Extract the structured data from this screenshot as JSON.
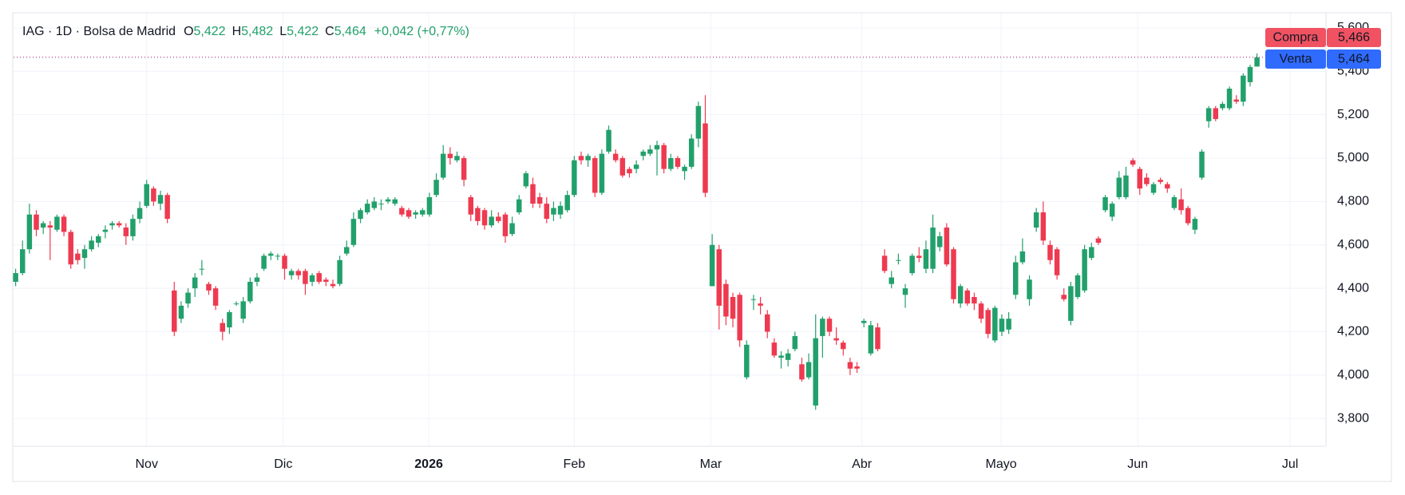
{
  "chart_data": {
    "type": "candlestick",
    "title": "IAG · 1D · Bolsa de Madrid",
    "ohlc_labels": [
      {
        "label": "O",
        "value": "5,422"
      },
      {
        "label": "H",
        "value": "5,482"
      },
      {
        "label": "L",
        "value": "5,422"
      },
      {
        "label": "C",
        "value": "5,464"
      }
    ],
    "change": "+0,042 (+0,77%)",
    "up_color": "#22a06b",
    "down_color": "#ee3a50",
    "grid": true,
    "xlim": [
      -0.3,
      190
    ],
    "xticks": [
      {
        "value": 19,
        "label": "Nov"
      },
      {
        "value": 38.8,
        "label": "Dic"
      },
      {
        "value": 59.9,
        "label": "2026"
      },
      {
        "value": 81,
        "label": "Feb"
      },
      {
        "value": 100.8,
        "label": "Mar"
      },
      {
        "value": 122.7,
        "label": "Abr"
      },
      {
        "value": 142.9,
        "label": "Mayo"
      },
      {
        "value": 162.7,
        "label": "Jun"
      },
      {
        "value": 184.8,
        "label": "Jul"
      }
    ],
    "ylim": [
      3.672,
      5.666
    ],
    "yticks": [
      {
        "value": 3.8,
        "label": "3,800"
      },
      {
        "value": 4.0,
        "label": "4,000"
      },
      {
        "value": 4.2,
        "label": "4,200"
      },
      {
        "value": 4.4,
        "label": "4,400"
      },
      {
        "value": 4.6,
        "label": "4,600"
      },
      {
        "value": 4.8,
        "label": "4,800"
      },
      {
        "value": 5.0,
        "label": "5,000"
      },
      {
        "value": 5.2,
        "label": "5,200"
      },
      {
        "value": 5.4,
        "label": "5,400"
      },
      {
        "value": 5.6,
        "label": "5,600"
      }
    ],
    "price_lines": [
      {
        "name": "Compra",
        "value": 5.466,
        "label": "5,466",
        "color": "#f05262"
      },
      {
        "name": "Venta",
        "value": 5.464,
        "label": "5,464",
        "color": "#2f6bff"
      }
    ],
    "ohlc": [
      [
        4.43,
        4.49,
        4.41,
        4.47
      ],
      [
        4.47,
        4.62,
        4.46,
        4.58
      ],
      [
        4.58,
        4.79,
        4.56,
        4.74
      ],
      [
        4.74,
        4.76,
        4.64,
        4.67
      ],
      [
        4.68,
        4.71,
        4.65,
        4.7
      ],
      [
        4.69,
        4.71,
        4.53,
        4.68
      ],
      [
        4.67,
        4.74,
        4.66,
        4.73
      ],
      [
        4.73,
        4.74,
        4.64,
        4.66
      ],
      [
        4.66,
        4.67,
        4.49,
        4.51
      ],
      [
        4.56,
        4.58,
        4.51,
        4.53
      ],
      [
        4.54,
        4.6,
        4.49,
        4.58
      ],
      [
        4.58,
        4.64,
        4.57,
        4.62
      ],
      [
        4.61,
        4.65,
        4.59,
        4.64
      ],
      [
        4.66,
        4.69,
        4.63,
        4.67
      ],
      [
        4.69,
        4.71,
        4.67,
        4.7
      ],
      [
        4.7,
        4.71,
        4.68,
        4.69
      ],
      [
        4.68,
        4.7,
        4.6,
        4.64
      ],
      [
        4.64,
        4.74,
        4.62,
        4.72
      ],
      [
        4.72,
        4.8,
        4.7,
        4.77
      ],
      [
        4.78,
        4.9,
        4.77,
        4.88
      ],
      [
        4.86,
        4.87,
        4.78,
        4.8
      ],
      [
        4.79,
        4.85,
        4.76,
        4.83
      ],
      [
        4.83,
        4.84,
        4.7,
        4.72
      ],
      [
        4.39,
        4.43,
        4.18,
        4.2
      ],
      [
        4.26,
        4.34,
        4.24,
        4.32
      ],
      [
        4.33,
        4.4,
        4.31,
        4.38
      ],
      [
        4.4,
        4.47,
        4.36,
        4.45
      ],
      [
        4.49,
        4.53,
        4.46,
        4.49
      ],
      [
        4.42,
        4.43,
        4.37,
        4.39
      ],
      [
        4.4,
        4.41,
        4.3,
        4.32
      ],
      [
        4.24,
        4.26,
        4.16,
        4.2
      ],
      [
        4.22,
        4.3,
        4.19,
        4.29
      ],
      [
        4.33,
        4.34,
        4.32,
        4.33
      ],
      [
        4.26,
        4.36,
        4.24,
        4.34
      ],
      [
        4.34,
        4.45,
        4.33,
        4.43
      ],
      [
        4.43,
        4.47,
        4.41,
        4.45
      ],
      [
        4.49,
        4.56,
        4.48,
        4.55
      ],
      [
        4.55,
        4.57,
        4.53,
        4.56
      ],
      [
        4.55,
        4.56,
        4.53,
        4.55
      ],
      [
        4.55,
        4.56,
        4.44,
        4.49
      ],
      [
        4.46,
        4.49,
        4.44,
        4.48
      ],
      [
        4.48,
        4.49,
        4.44,
        4.46
      ],
      [
        4.48,
        4.49,
        4.37,
        4.42
      ],
      [
        4.43,
        4.47,
        4.41,
        4.46
      ],
      [
        4.47,
        4.48,
        4.42,
        4.43
      ],
      [
        4.44,
        4.45,
        4.41,
        4.43
      ],
      [
        4.42,
        4.44,
        4.4,
        4.41
      ],
      [
        4.42,
        4.55,
        4.41,
        4.53
      ],
      [
        4.56,
        4.62,
        4.55,
        4.59
      ],
      [
        4.6,
        4.75,
        4.59,
        4.72
      ],
      [
        4.72,
        4.77,
        4.7,
        4.76
      ],
      [
        4.75,
        4.81,
        4.74,
        4.79
      ],
      [
        4.77,
        4.82,
        4.76,
        4.8
      ],
      [
        4.79,
        4.81,
        4.76,
        4.79
      ],
      [
        4.8,
        4.82,
        4.79,
        4.81
      ],
      [
        4.79,
        4.82,
        4.78,
        4.81
      ],
      [
        4.77,
        4.78,
        4.73,
        4.74
      ],
      [
        4.76,
        4.77,
        4.72,
        4.73
      ],
      [
        4.74,
        4.76,
        4.72,
        4.75
      ],
      [
        4.74,
        4.77,
        4.73,
        4.76
      ],
      [
        4.74,
        4.84,
        4.73,
        4.82
      ],
      [
        4.83,
        4.93,
        4.82,
        4.9
      ],
      [
        4.91,
        5.06,
        4.9,
        5.02
      ],
      [
        5.02,
        5.05,
        4.97,
        5.0
      ],
      [
        4.99,
        5.03,
        4.98,
        5.01
      ],
      [
        5.0,
        5.01,
        4.87,
        4.9
      ],
      [
        4.82,
        4.83,
        4.71,
        4.74
      ],
      [
        4.77,
        4.78,
        4.69,
        4.71
      ],
      [
        4.76,
        4.77,
        4.67,
        4.69
      ],
      [
        4.69,
        4.76,
        4.68,
        4.73
      ],
      [
        4.73,
        4.75,
        4.7,
        4.71
      ],
      [
        4.74,
        4.75,
        4.61,
        4.64
      ],
      [
        4.65,
        4.73,
        4.64,
        4.7
      ],
      [
        4.75,
        4.83,
        4.74,
        4.81
      ],
      [
        4.87,
        4.94,
        4.86,
        4.93
      ],
      [
        4.88,
        4.91,
        4.77,
        4.79
      ],
      [
        4.82,
        4.84,
        4.77,
        4.79
      ],
      [
        4.79,
        4.82,
        4.7,
        4.72
      ],
      [
        4.74,
        4.8,
        4.71,
        4.77
      ],
      [
        4.74,
        4.8,
        4.72,
        4.78
      ],
      [
        4.76,
        4.85,
        4.75,
        4.83
      ],
      [
        4.83,
        5.01,
        4.82,
        4.99
      ],
      [
        5.01,
        5.03,
        4.97,
        4.99
      ],
      [
        4.99,
        5.02,
        4.96,
        5.01
      ],
      [
        5.0,
        5.01,
        4.82,
        4.84
      ],
      [
        4.84,
        5.04,
        4.83,
        5.02
      ],
      [
        5.03,
        5.15,
        5.02,
        5.13
      ],
      [
        5.02,
        5.04,
        4.98,
        4.99
      ],
      [
        5.0,
        5.01,
        4.91,
        4.92
      ],
      [
        4.95,
        4.96,
        4.91,
        4.93
      ],
      [
        4.95,
        4.99,
        4.93,
        4.97
      ],
      [
        5.01,
        5.04,
        4.99,
        5.03
      ],
      [
        5.02,
        5.06,
        5.01,
        5.04
      ],
      [
        5.04,
        5.08,
        4.92,
        5.06
      ],
      [
        5.06,
        5.07,
        4.93,
        4.95
      ],
      [
        4.95,
        5.02,
        4.94,
        5.0
      ],
      [
        5.0,
        5.01,
        4.95,
        4.96
      ],
      [
        4.94,
        4.97,
        4.9,
        4.96
      ],
      [
        4.96,
        5.11,
        4.95,
        5.09
      ],
      [
        5.09,
        5.26,
        5.05,
        5.24
      ],
      [
        5.16,
        5.29,
        4.82,
        4.84
      ],
      [
        4.41,
        4.65,
        4.41,
        4.6
      ],
      [
        4.58,
        4.6,
        4.21,
        4.32
      ],
      [
        4.42,
        4.44,
        4.23,
        4.27
      ],
      [
        4.36,
        4.38,
        4.22,
        4.26
      ],
      [
        4.37,
        4.38,
        4.13,
        4.16
      ],
      [
        3.99,
        4.16,
        3.98,
        4.14
      ],
      [
        4.35,
        4.37,
        4.3,
        4.35
      ],
      [
        4.33,
        4.36,
        4.28,
        4.32
      ],
      [
        4.28,
        4.3,
        4.17,
        4.2
      ],
      [
        4.15,
        4.17,
        4.08,
        4.09
      ],
      [
        4.08,
        4.11,
        4.03,
        4.09
      ],
      [
        4.07,
        4.12,
        4.04,
        4.1
      ],
      [
        4.12,
        4.2,
        4.11,
        4.18
      ],
      [
        4.05,
        4.08,
        3.97,
        3.98
      ],
      [
        3.99,
        4.1,
        3.98,
        4.06
      ],
      [
        3.86,
        4.28,
        3.84,
        4.17
      ],
      [
        4.18,
        4.27,
        4.08,
        4.26
      ],
      [
        4.26,
        4.27,
        4.18,
        4.2
      ],
      [
        4.17,
        4.22,
        4.14,
        4.16
      ],
      [
        4.15,
        4.16,
        4.09,
        4.12
      ],
      [
        4.06,
        4.08,
        4.0,
        4.03
      ],
      [
        4.04,
        4.06,
        4.01,
        4.03
      ],
      [
        4.24,
        4.26,
        4.22,
        4.25
      ],
      [
        4.1,
        4.25,
        4.09,
        4.23
      ],
      [
        4.22,
        4.24,
        4.11,
        4.12
      ],
      [
        4.55,
        4.58,
        4.47,
        4.48
      ],
      [
        4.42,
        4.48,
        4.4,
        4.45
      ],
      [
        4.53,
        4.56,
        4.51,
        4.53
      ],
      [
        4.37,
        4.42,
        4.31,
        4.4
      ],
      [
        4.47,
        4.56,
        4.46,
        4.55
      ],
      [
        4.55,
        4.59,
        4.52,
        4.54
      ],
      [
        4.49,
        4.62,
        4.47,
        4.58
      ],
      [
        4.49,
        4.74,
        4.47,
        4.68
      ],
      [
        4.59,
        4.66,
        4.57,
        4.64
      ],
      [
        4.68,
        4.7,
        4.5,
        4.51
      ],
      [
        4.58,
        4.59,
        4.33,
        4.35
      ],
      [
        4.33,
        4.42,
        4.31,
        4.41
      ],
      [
        4.39,
        4.4,
        4.32,
        4.33
      ],
      [
        4.36,
        4.38,
        4.3,
        4.33
      ],
      [
        4.33,
        4.34,
        4.24,
        4.26
      ],
      [
        4.3,
        4.31,
        4.17,
        4.19
      ],
      [
        4.16,
        4.32,
        4.15,
        4.31
      ],
      [
        4.2,
        4.28,
        4.18,
        4.26
      ],
      [
        4.21,
        4.29,
        4.19,
        4.26
      ],
      [
        4.37,
        4.55,
        4.35,
        4.52
      ],
      [
        4.52,
        4.63,
        4.51,
        4.57
      ],
      [
        4.35,
        4.46,
        4.32,
        4.44
      ],
      [
        4.68,
        4.77,
        4.66,
        4.75
      ],
      [
        4.75,
        4.8,
        4.6,
        4.62
      ],
      [
        4.6,
        4.62,
        4.51,
        4.53
      ],
      [
        4.58,
        4.59,
        4.44,
        4.46
      ],
      [
        4.37,
        4.4,
        4.34,
        4.35
      ],
      [
        4.25,
        4.43,
        4.23,
        4.41
      ],
      [
        4.36,
        4.47,
        4.35,
        4.46
      ],
      [
        4.39,
        4.6,
        4.38,
        4.58
      ],
      [
        4.54,
        4.61,
        4.53,
        4.59
      ],
      [
        4.63,
        4.64,
        4.6,
        4.61
      ],
      [
        4.76,
        4.83,
        4.75,
        4.82
      ],
      [
        4.73,
        4.8,
        4.71,
        4.79
      ],
      [
        4.82,
        4.94,
        4.81,
        4.91
      ],
      [
        4.82,
        4.96,
        4.81,
        4.92
      ],
      [
        4.99,
        5.0,
        4.96,
        4.97
      ],
      [
        4.95,
        4.96,
        4.83,
        4.86
      ],
      [
        4.91,
        4.93,
        4.87,
        4.88
      ],
      [
        4.84,
        4.89,
        4.83,
        4.88
      ],
      [
        4.9,
        4.91,
        4.88,
        4.89
      ],
      [
        4.88,
        4.89,
        4.84,
        4.86
      ],
      [
        4.77,
        4.83,
        4.76,
        4.82
      ],
      [
        4.81,
        4.86,
        4.74,
        4.76
      ],
      [
        4.77,
        4.78,
        4.69,
        4.7
      ],
      [
        4.67,
        4.73,
        4.65,
        4.72
      ],
      [
        4.91,
        5.04,
        4.9,
        5.03
      ],
      [
        5.17,
        5.24,
        5.14,
        5.23
      ],
      [
        5.23,
        5.24,
        5.17,
        5.18
      ],
      [
        5.23,
        5.26,
        5.22,
        5.25
      ],
      [
        5.23,
        5.33,
        5.22,
        5.32
      ],
      [
        5.27,
        5.29,
        5.25,
        5.26
      ],
      [
        5.26,
        5.39,
        5.24,
        5.38
      ],
      [
        5.35,
        5.43,
        5.33,
        5.42
      ],
      [
        5.422,
        5.482,
        5.422,
        5.464
      ]
    ]
  }
}
